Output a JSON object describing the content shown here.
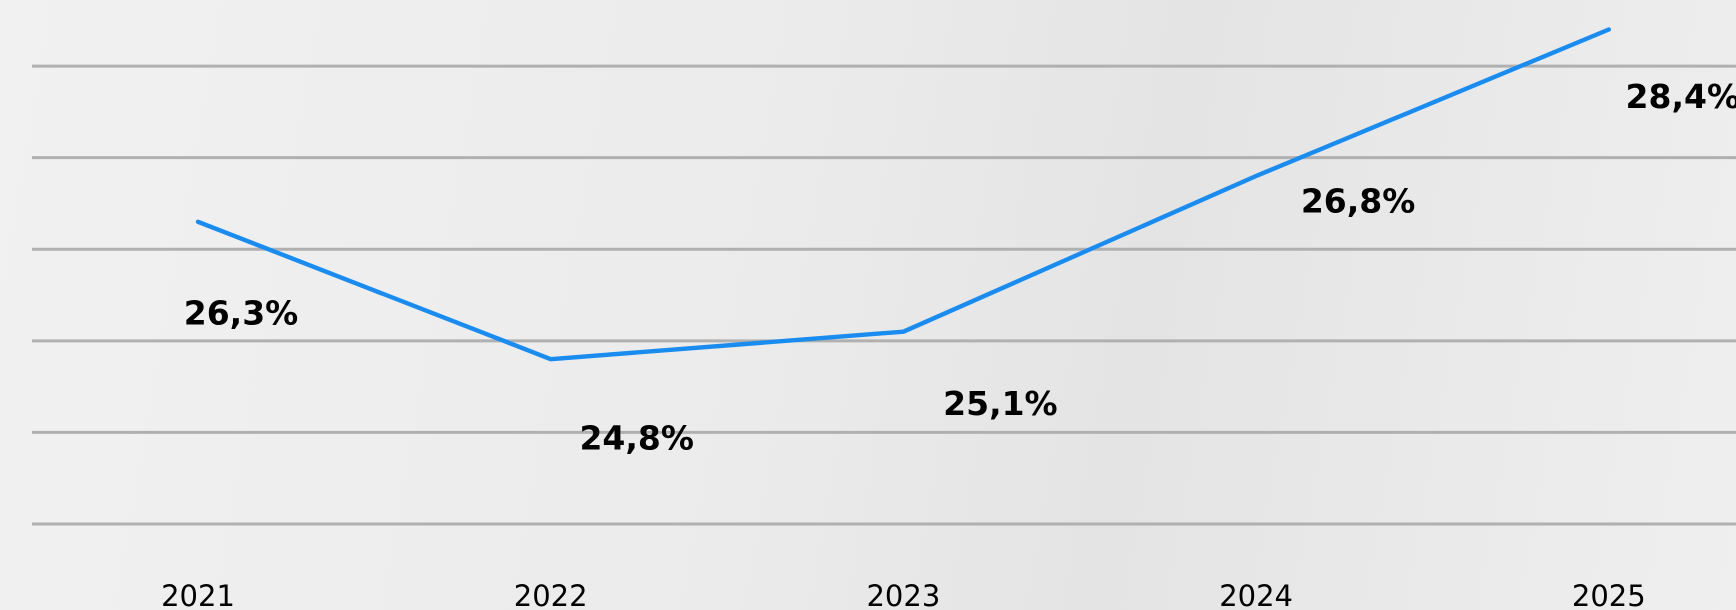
{
  "chart_data": {
    "type": "line",
    "categories": [
      "2021",
      "2022",
      "2023",
      "2024",
      "2025"
    ],
    "series": [
      {
        "color": "#1a8cf0",
        "values": [
          26.3,
          24.8,
          25.1,
          26.8,
          28.4
        ],
        "value_labels": [
          "26,3%",
          "24,8%",
          "25,1%",
          "26,8%",
          "28,4%"
        ]
      }
    ],
    "ylim": [
      23,
      28.7
    ],
    "yticks": [
      23,
      24,
      25,
      26,
      27,
      28
    ],
    "grid": true
  }
}
